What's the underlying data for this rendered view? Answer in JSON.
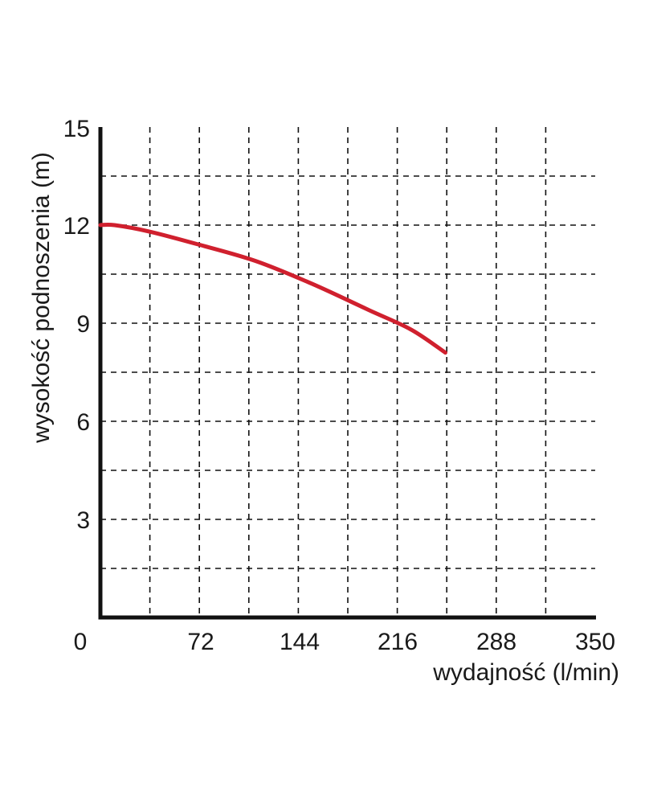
{
  "chart_data": {
    "type": "line",
    "xlabel": "wydajność (l/min)",
    "ylabel": "wysokość podnoszenia (m)",
    "xlim": [
      0,
      350
    ],
    "ylim": [
      0,
      15
    ],
    "x_ticks": [
      "0",
      "72",
      "144",
      "216",
      "288",
      "350"
    ],
    "y_ticks": [
      "3",
      "6",
      "9",
      "12",
      "15"
    ],
    "grid": true,
    "grid_style": "dashed",
    "series": [
      {
        "color": "#d0202e",
        "x": [
          0,
          10,
          35,
          70,
          110,
          150,
          190,
          220,
          244
        ],
        "y": [
          12.0,
          12.0,
          11.8,
          11.4,
          10.9,
          10.2,
          9.4,
          8.8,
          8.1
        ]
      }
    ]
  },
  "colors": {
    "axis": "#111111",
    "grid": "#111111",
    "curve": "#d0202e"
  }
}
